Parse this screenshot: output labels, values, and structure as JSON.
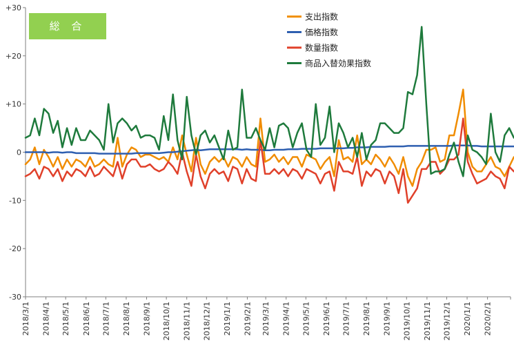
{
  "chart_data": {
    "type": "line",
    "title": "総 合",
    "badge_color": "#92D050",
    "ylim": [
      -30,
      30
    ],
    "yticks": [
      30,
      20,
      10,
      0,
      -10,
      -20,
      -30
    ],
    "ytick_labels": [
      "+30",
      "+20",
      "+10",
      "0",
      "-10",
      "-20",
      "-30"
    ],
    "xlim": [
      "2018-03-01",
      "2020-03-07"
    ],
    "xtick_dates": [
      "2018-03-01",
      "2018-04-01",
      "2018-05-01",
      "2018-06-01",
      "2018-07-01",
      "2018-08-01",
      "2018-09-01",
      "2018-10-01",
      "2018-11-01",
      "2018-12-01",
      "2019-01-01",
      "2019-02-01",
      "2019-03-01",
      "2019-04-01",
      "2019-05-01",
      "2019-06-01",
      "2019-07-01",
      "2019-08-01",
      "2019-09-01",
      "2019-10-01",
      "2019-11-01",
      "2019-12-01",
      "2020-01-01",
      "2020-02-01"
    ],
    "xtick_labels": [
      "2018/3/1",
      "2018/4/1",
      "2018/5/1",
      "2018/6/1",
      "2018/7/1",
      "2018/8/1",
      "2018/9/1",
      "2018/10/1",
      "2018/11/1",
      "2018/12/1",
      "2019/1/1",
      "2019/2/1",
      "2019/3/1",
      "2019/4/1",
      "2019/5/1",
      "2019/6/1",
      "2019/7/1",
      "2019/8/1",
      "2019/9/1",
      "2019/10/1",
      "2019/11/1",
      "2019/12/1",
      "2020/1/1",
      "2020/2/1"
    ],
    "x_start": "2018-03-01",
    "x_step_days": 7,
    "grid": false,
    "legend_position": "top-center",
    "series": [
      {
        "name": "支出指数",
        "color": "#F08C00",
        "values": [
          -2.5,
          -1.5,
          1.0,
          -2.5,
          0.5,
          -1.0,
          -3.0,
          -1.0,
          -3.5,
          -1.5,
          -3.0,
          -1.5,
          -2.0,
          -3.0,
          -1.0,
          -3.0,
          -2.5,
          -1.5,
          -2.5,
          -3.0,
          3.0,
          -3.0,
          -0.5,
          1.0,
          0.5,
          -1.0,
          -0.5,
          -0.5,
          -1.0,
          -1.5,
          -1.0,
          -2.0,
          1.0,
          -1.5,
          3.5,
          -0.5,
          -4.0,
          3.0,
          -2.5,
          -4.5,
          -2.0,
          -1.0,
          -2.0,
          -1.0,
          -3.0,
          -1.0,
          -1.5,
          -3.0,
          -1.0,
          -2.5,
          -3.0,
          7.0,
          -2.0,
          -1.5,
          -0.5,
          -2.0,
          -1.0,
          -2.5,
          -1.0,
          -1.0,
          -3.0,
          -0.5,
          -1.0,
          -1.5,
          -3.5,
          -2.0,
          -1.0,
          -5.0,
          2.5,
          -1.5,
          -1.0,
          -2.0,
          3.5,
          -2.5,
          -1.5,
          -2.5,
          -0.5,
          -1.5,
          -3.0,
          -1.0,
          -2.5,
          -4.5,
          -1.0,
          -5.0,
          -7.0,
          -3.5,
          -2.0,
          0.5,
          0.5,
          1.0,
          -2.0,
          -1.5,
          3.5,
          3.5,
          8.0,
          13.0,
          0.0,
          -3.0,
          -4.0,
          -4.0,
          -2.5,
          -1.0,
          -3.0,
          -3.5,
          -5.0,
          -3.0,
          -1.0,
          -2.5,
          -4.0,
          5.0,
          -2.5,
          -3.0,
          0.0,
          -1.5,
          -0.5,
          0.5,
          1.0,
          0.5
        ]
      },
      {
        "name": "価格指数",
        "color": "#2E5FB0",
        "values": [
          0.0,
          0.0,
          0.0,
          0.0,
          0.0,
          -0.1,
          0.0,
          0.0,
          -0.1,
          0.0,
          0.0,
          -0.2,
          -0.2,
          -0.2,
          -0.2,
          -0.2,
          -0.3,
          -0.3,
          -0.3,
          -0.3,
          -0.3,
          -0.3,
          -0.3,
          -0.3,
          -0.2,
          -0.2,
          -0.2,
          -0.2,
          -0.2,
          -0.2,
          -0.1,
          0.0,
          0.0,
          0.1,
          0.2,
          0.3,
          0.4,
          0.5,
          0.4,
          0.5,
          0.6,
          0.6,
          0.6,
          0.6,
          0.6,
          0.6,
          0.6,
          0.5,
          0.6,
          0.5,
          0.5,
          0.5,
          0.4,
          0.4,
          0.5,
          0.5,
          0.5,
          0.6,
          0.6,
          0.6,
          0.7,
          0.7,
          0.7,
          0.7,
          0.8,
          0.8,
          0.8,
          0.8,
          0.8,
          0.8,
          0.9,
          0.9,
          1.0,
          1.0,
          1.0,
          1.1,
          1.1,
          1.1,
          1.1,
          1.2,
          1.2,
          1.2,
          1.2,
          1.3,
          1.3,
          1.3,
          1.3,
          1.3,
          1.3,
          1.3,
          1.3,
          1.3,
          1.3,
          1.4,
          1.4,
          1.4,
          1.4,
          1.3,
          1.3,
          1.2,
          1.2,
          1.2,
          1.2,
          1.2,
          1.2,
          1.2,
          1.2,
          1.2,
          1.2,
          1.2,
          1.1,
          1.1,
          1.1,
          1.1,
          1.1,
          1.1,
          1.1,
          1.1
        ]
      },
      {
        "name": "数量指数",
        "color": "#E0402A",
        "values": [
          -5.0,
          -4.5,
          -3.5,
          -5.5,
          -3.0,
          -3.5,
          -5.0,
          -3.5,
          -6.0,
          -4.0,
          -5.0,
          -3.5,
          -4.0,
          -5.0,
          -3.0,
          -5.0,
          -4.5,
          -3.0,
          -4.0,
          -5.0,
          -2.0,
          -5.5,
          -2.5,
          -1.5,
          -1.5,
          -3.0,
          -3.0,
          -2.5,
          -3.5,
          -4.0,
          -3.5,
          -2.0,
          -3.0,
          -4.5,
          0.0,
          -4.0,
          -7.0,
          -0.5,
          -5.0,
          -7.5,
          -4.5,
          -3.5,
          -4.5,
          -4.0,
          -6.0,
          -3.0,
          -3.5,
          -6.5,
          -3.5,
          -5.5,
          -6.0,
          2.5,
          -4.5,
          -4.5,
          -3.5,
          -4.5,
          -3.5,
          -5.0,
          -3.5,
          -4.0,
          -5.5,
          -3.5,
          -4.0,
          -4.5,
          -6.5,
          -4.5,
          -4.0,
          -8.0,
          -2.0,
          -4.0,
          -4.0,
          -4.5,
          -1.0,
          -7.0,
          -4.0,
          -5.0,
          -3.5,
          -4.0,
          -6.5,
          -4.0,
          -5.0,
          -8.5,
          -3.5,
          -10.5,
          -9.0,
          -7.5,
          -3.5,
          -3.5,
          -2.0,
          -2.0,
          -4.5,
          -3.5,
          -1.5,
          -1.5,
          -0.5,
          7.0,
          -2.0,
          -4.5,
          -6.5,
          -6.0,
          -5.5,
          -4.0,
          -5.0,
          -5.5,
          -7.5,
          -3.0,
          -4.0,
          -4.5,
          -5.5,
          -8.5,
          1.5,
          -5.0,
          -6.0,
          -3.5,
          -3.5,
          -4.0,
          -3.5,
          -3.0,
          -2.5
        ]
      },
      {
        "name": "商品入替効果指数",
        "color": "#1E7A3C",
        "values": [
          3.0,
          3.5,
          7.0,
          3.5,
          9.0,
          8.0,
          4.0,
          6.5,
          1.0,
          5.0,
          1.5,
          5.0,
          2.5,
          2.5,
          4.5,
          3.5,
          2.5,
          0.5,
          10.0,
          2.0,
          6.0,
          7.0,
          6.0,
          4.5,
          5.5,
          3.0,
          3.5,
          3.5,
          3.0,
          0.5,
          7.5,
          2.5,
          12.0,
          2.5,
          -1.5,
          11.5,
          3.5,
          -0.5,
          3.5,
          4.5,
          2.0,
          3.5,
          1.0,
          -1.5,
          4.5,
          0.5,
          1.0,
          13.0,
          3.0,
          3.0,
          5.0,
          2.5,
          0.5,
          5.0,
          1.0,
          5.5,
          6.0,
          5.0,
          1.0,
          4.0,
          6.0,
          0.5,
          -1.0,
          10.0,
          1.5,
          3.0,
          9.5,
          0.0,
          6.0,
          4.0,
          1.0,
          3.0,
          -1.0,
          4.0,
          -1.5,
          1.5,
          2.5,
          6.0,
          6.0,
          5.0,
          4.0,
          4.0,
          5.0,
          12.5,
          12.0,
          16.0,
          26.0,
          10.0,
          -4.5,
          -4.0,
          -4.0,
          -3.5,
          -0.5,
          2.0,
          -2.0,
          -5.0,
          3.5,
          0.5,
          0.0,
          -1.0,
          -2.5,
          8.0,
          0.0,
          -2.0,
          3.5,
          5.0,
          3.0,
          3.5,
          4.5,
          -3.0,
          -2.0,
          1.5,
          1.5,
          2.0,
          3.0,
          3.5,
          4.5,
          4.0
        ]
      }
    ]
  }
}
